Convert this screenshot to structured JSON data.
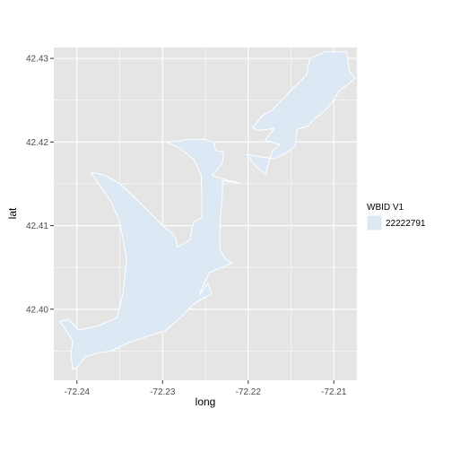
{
  "chart_data": {
    "type": "map-polygon",
    "title": "",
    "xlabel": "long",
    "ylabel": "lat",
    "xlim": [
      -72.2427,
      -72.2073
    ],
    "ylim": [
      42.3915,
      42.4313
    ],
    "x_ticks": [
      -72.24,
      -72.23,
      -72.22,
      -72.21
    ],
    "x_tick_labels": [
      "-72.24",
      "-72.23",
      "-72.22",
      "-72.21"
    ],
    "y_ticks": [
      42.4,
      42.41,
      42.42,
      42.43
    ],
    "y_tick_labels": [
      "42.40",
      "42.41",
      "42.42",
      "42.43"
    ],
    "grid": true,
    "legend": {
      "title": "WBID V1",
      "placement": "right",
      "entries": [
        {
          "label": "22222791",
          "color": "#dde8f5"
        }
      ]
    },
    "colors": {
      "panel": "#e5e5e5",
      "grid": "#ffffff",
      "fill": "#dde8f5",
      "outline": "#ffffff"
    },
    "series": [
      {
        "name": "22222791",
        "polygons": [
          {
            "id": "main-lake",
            "points": [
              [
                -72.2384,
                42.4164
              ],
              [
                -72.2367,
                42.416
              ],
              [
                -72.235,
                42.415
              ],
              [
                -72.2334,
                42.4135
              ],
              [
                -72.2316,
                42.4117
              ],
              [
                -72.2299,
                42.4099
              ],
              [
                -72.2289,
                42.4091
              ],
              [
                -72.2284,
                42.4084
              ],
              [
                -72.2283,
                42.4074
              ],
              [
                -72.2268,
                42.4083
              ],
              [
                -72.2264,
                42.4104
              ],
              [
                -72.2254,
                42.411
              ],
              [
                -72.2254,
                42.4136
              ],
              [
                -72.2255,
                42.4161
              ],
              [
                -72.2264,
                42.418
              ],
              [
                -72.2281,
                42.4193
              ],
              [
                -72.2295,
                42.42
              ],
              [
                -72.228,
                42.4201
              ],
              [
                -72.2272,
                42.4203
              ],
              [
                -72.2251,
                42.4203
              ],
              [
                -72.224,
                42.42
              ],
              [
                -72.2238,
                42.419
              ],
              [
                -72.2229,
                42.4188
              ],
              [
                -72.223,
                42.4175
              ],
              [
                -72.2242,
                42.416
              ],
              [
                -72.2224,
                42.4154
              ],
              [
                -72.221,
                42.4151
              ],
              [
                -72.223,
                42.4154
              ],
              [
                -72.223,
                42.414
              ],
              [
                -72.2233,
                42.41
              ],
              [
                -72.2233,
                42.4072
              ],
              [
                -72.2227,
                42.4061
              ],
              [
                -72.2219,
                42.4055
              ],
              [
                -72.2228,
                42.4051
              ],
              [
                -72.2245,
                42.4044
              ],
              [
                -72.2252,
                42.403
              ],
              [
                -72.2257,
                42.4017
              ],
              [
                -72.2247,
                42.4031
              ],
              [
                -72.2243,
                42.4018
              ],
              [
                -72.2255,
                42.4012
              ],
              [
                -72.2265,
                42.4005
              ],
              [
                -72.2279,
                42.399
              ],
              [
                -72.2297,
                42.3974
              ],
              [
                -72.231,
                42.397
              ],
              [
                -72.234,
                42.396
              ],
              [
                -72.236,
                42.395
              ],
              [
                -72.2375,
                42.3948
              ],
              [
                -72.239,
                42.3943
              ],
              [
                -72.24,
                42.393
              ],
              [
                -72.2405,
                42.3928
              ],
              [
                -72.2407,
                42.3945
              ],
              [
                -72.2405,
                42.3963
              ],
              [
                -72.242,
                42.3985
              ],
              [
                -72.241,
                42.3988
              ],
              [
                -72.2398,
                42.3975
              ],
              [
                -72.2375,
                42.398
              ],
              [
                -72.2353,
                42.399
              ],
              [
                -72.2346,
                42.402
              ],
              [
                -72.2342,
                42.406
              ],
              [
                -72.235,
                42.4105
              ],
              [
                -72.236,
                42.4128
              ],
              [
                -72.2384,
                42.4164
              ]
            ]
          },
          {
            "id": "northeast-arm",
            "points": [
              [
                -72.2202,
                42.4185
              ],
              [
                -72.219,
                42.417
              ],
              [
                -72.218,
                42.4161
              ],
              [
                -72.2176,
                42.4176
              ],
              [
                -72.2172,
                42.4189
              ],
              [
                -72.2163,
                42.4197
              ],
              [
                -72.218,
                42.4202
              ],
              [
                -72.217,
                42.4216
              ],
              [
                -72.2188,
                42.4214
              ],
              [
                -72.2195,
                42.4217
              ],
              [
                -72.2183,
                42.4232
              ],
              [
                -72.2172,
                42.4238
              ],
              [
                -72.2148,
                42.4264
              ],
              [
                -72.2132,
                42.428
              ],
              [
                -72.2128,
                42.43
              ],
              [
                -72.211,
                42.4308
              ],
              [
                -72.2085,
                42.4308
              ],
              [
                -72.2082,
                42.4285
              ],
              [
                -72.2075,
                42.4276
              ],
              [
                -72.2082,
                42.427
              ],
              [
                -72.2093,
                42.4262
              ],
              [
                -72.2103,
                42.4246
              ],
              [
                -72.2112,
                42.4236
              ],
              [
                -72.2122,
                42.4228
              ],
              [
                -72.213,
                42.4219
              ],
              [
                -72.2143,
                42.4215
              ],
              [
                -72.2145,
                42.4195
              ],
              [
                -72.2158,
                42.4185
              ],
              [
                -72.217,
                42.418
              ],
              [
                -72.2202,
                42.4185
              ]
            ]
          }
        ]
      }
    ]
  }
}
